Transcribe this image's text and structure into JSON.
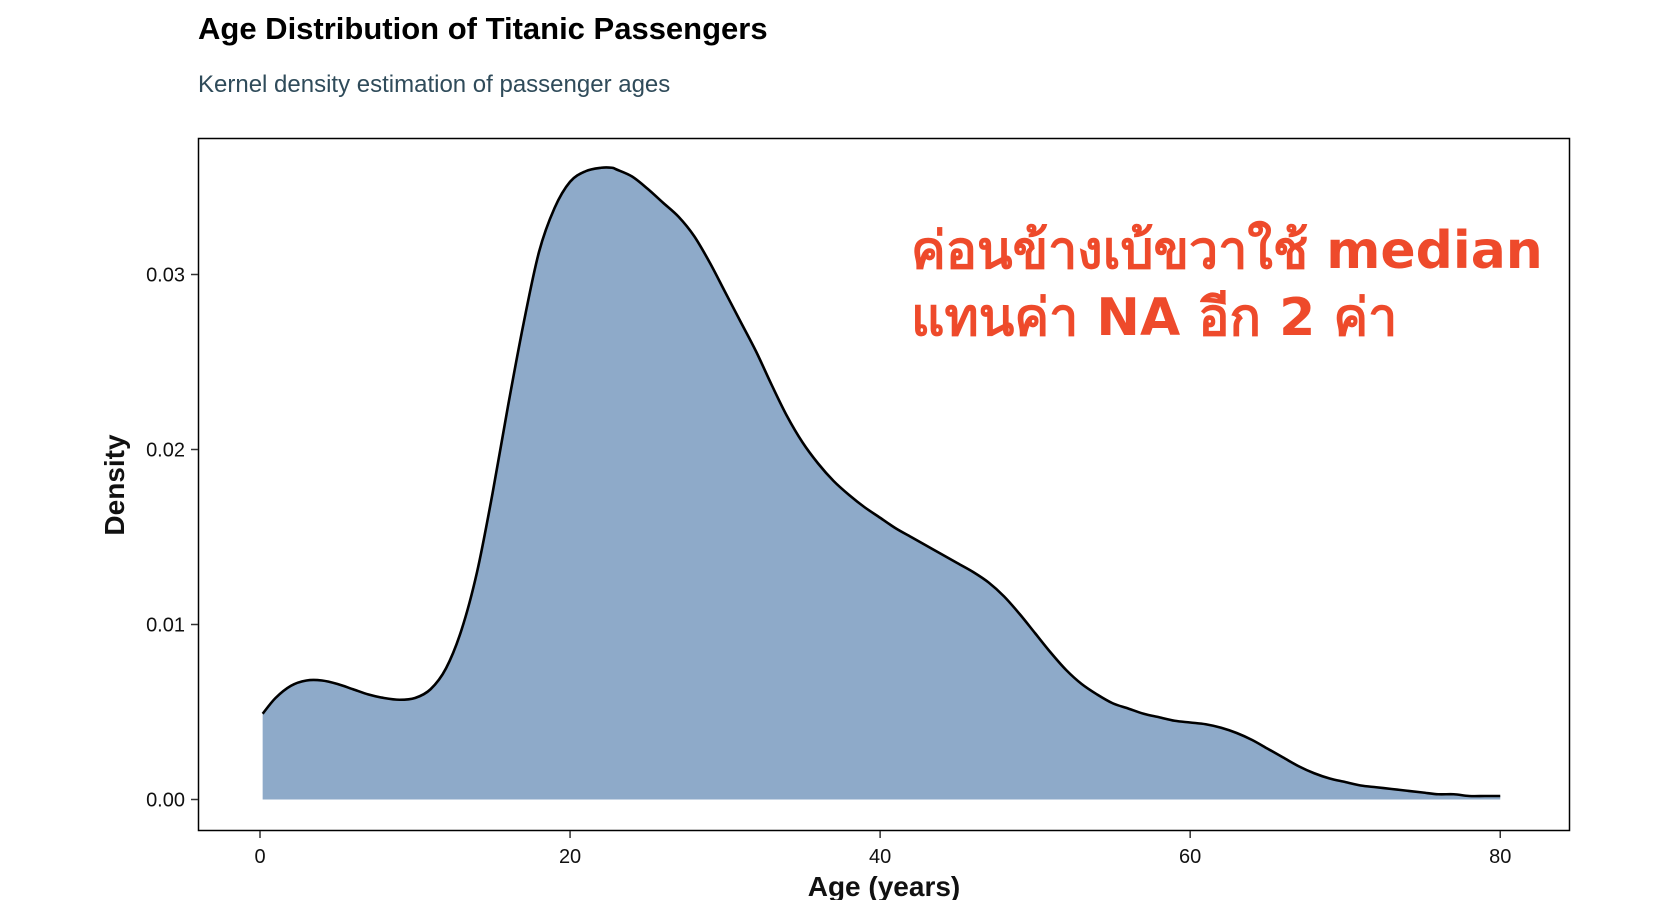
{
  "chart_data": {
    "type": "area",
    "title": "Age Distribution of Titanic Passengers",
    "subtitle": "Kernel density estimation of passenger ages",
    "xlabel": "Age (years)",
    "ylabel": "Density",
    "xlim": [
      -4,
      84.5
    ],
    "ylim": [
      -0.0018,
      0.0378
    ],
    "x_ticks": [
      0,
      20,
      40,
      60,
      80
    ],
    "x_tick_labels": [
      "0",
      "20",
      "40",
      "60",
      "80"
    ],
    "y_ticks": [
      0.0,
      0.01,
      0.02,
      0.03
    ],
    "y_tick_labels": [
      "0.00",
      "0.01",
      "0.02",
      "0.03"
    ],
    "grid": false,
    "legend": "none",
    "fill_color": "#8eaac9",
    "line_color": "#000000",
    "series": [
      {
        "x": [
          0.17,
          1,
          2,
          3,
          4,
          5,
          6,
          7,
          8,
          9,
          10,
          11,
          12,
          13,
          14,
          15,
          16,
          17,
          18,
          19,
          20,
          21,
          22,
          22.7,
          23,
          24,
          25,
          26,
          27,
          28,
          29,
          30,
          31,
          32,
          33,
          34,
          35,
          36,
          37,
          38,
          39,
          40,
          41,
          42,
          43,
          44,
          45,
          46,
          47,
          48,
          49,
          50,
          51,
          52,
          53,
          54,
          55,
          56,
          57,
          58,
          59,
          60,
          61,
          62,
          63,
          64,
          65,
          66,
          67,
          68,
          69,
          70,
          71,
          72,
          73,
          74,
          75,
          76,
          77,
          78,
          79,
          80
        ],
        "y": [
          0.0049,
          0.0058,
          0.0065,
          0.0068,
          0.0068,
          0.0066,
          0.0063,
          0.006,
          0.0058,
          0.0057,
          0.0058,
          0.0063,
          0.0075,
          0.0097,
          0.013,
          0.0175,
          0.0225,
          0.0272,
          0.0313,
          0.0338,
          0.0353,
          0.0359,
          0.0361,
          0.0361,
          0.036,
          0.0356,
          0.0349,
          0.0341,
          0.0333,
          0.0322,
          0.0307,
          0.029,
          0.0273,
          0.0256,
          0.0237,
          0.0219,
          0.0204,
          0.0192,
          0.0182,
          0.0174,
          0.0167,
          0.0161,
          0.0155,
          0.015,
          0.0145,
          0.014,
          0.0135,
          0.013,
          0.0124,
          0.0116,
          0.0106,
          0.0095,
          0.0084,
          0.0074,
          0.0066,
          0.006,
          0.0055,
          0.0052,
          0.0049,
          0.0047,
          0.0045,
          0.0044,
          0.0043,
          0.0041,
          0.0038,
          0.0034,
          0.0029,
          0.0024,
          0.0019,
          0.0015,
          0.0012,
          0.001,
          0.0008,
          0.0007,
          0.0006,
          0.0005,
          0.0004,
          0.0003,
          0.0003,
          0.0002,
          0.0002,
          0.0002
        ]
      }
    ],
    "annotations": [
      {
        "lines": [
          "ค่อนข้างเบ้ขวาใช้ median",
          "แทนค่า NA อีก 2 ค่า"
        ],
        "color": "#ee4a2b",
        "placement": "top-right"
      }
    ]
  }
}
